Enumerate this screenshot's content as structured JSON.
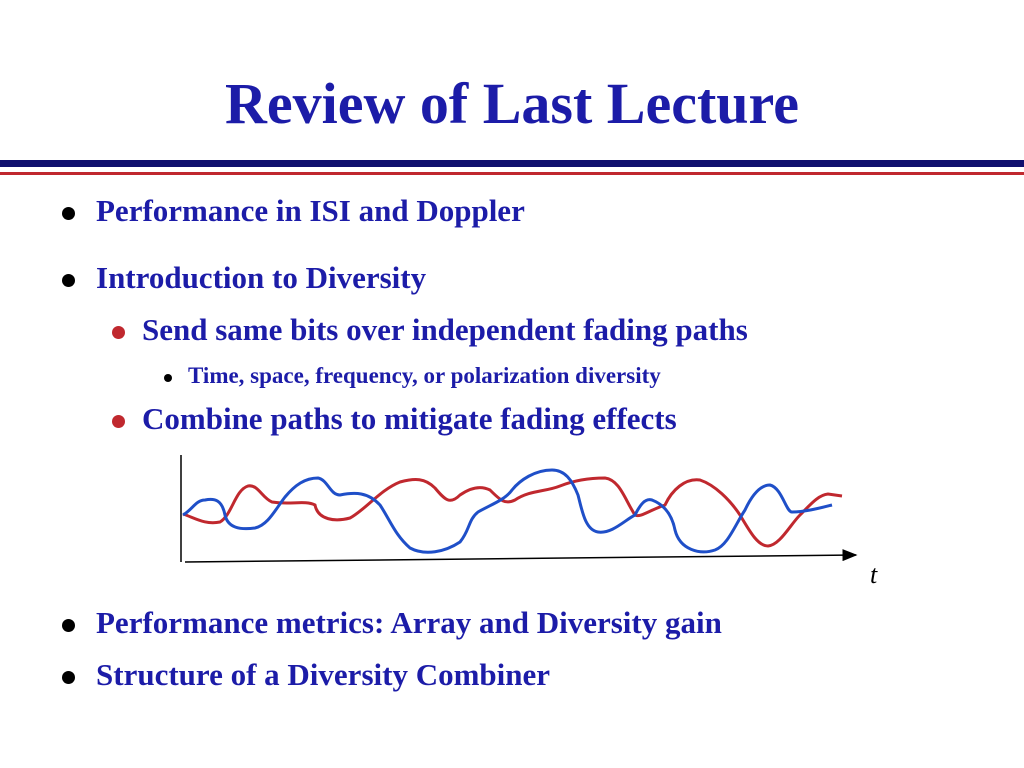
{
  "title": "Review of Last Lecture",
  "bullets": [
    {
      "text": "Performance in ISI and Doppler"
    },
    {
      "text": "Introduction to Diversity",
      "items": [
        {
          "text": "Send same bits over independent fading paths",
          "items": [
            {
              "text": "Time, space, frequency, or polarization diversity"
            }
          ]
        },
        {
          "text": "Combine paths to mitigate fading effects"
        }
      ]
    },
    {
      "text": "Performance metrics: Array and Diversity gain"
    },
    {
      "text": "Structure of a Diversity Combiner"
    }
  ],
  "figure": {
    "axis_label": "t"
  }
}
